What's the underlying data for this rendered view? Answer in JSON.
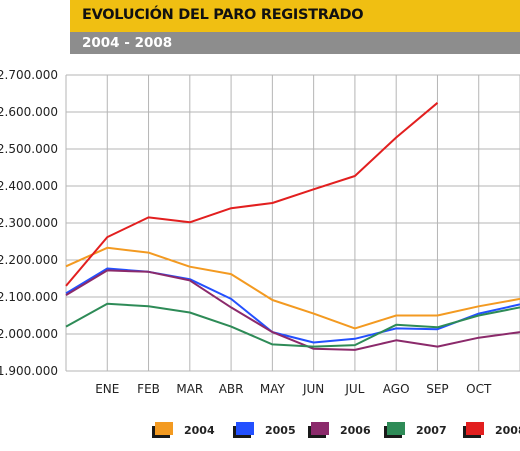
{
  "header": {
    "title": "EVOLUCIÓN DEL PARO REGISTRADO",
    "subtitle": "2004 - 2008"
  },
  "chart_data": {
    "type": "line",
    "title": "EVOLUCIÓN DEL PARO REGISTRADO",
    "subtitle": "2004 - 2008",
    "xlabel": "",
    "ylabel": "",
    "categories": [
      "",
      "ENE",
      "FEB",
      "MAR",
      "ABR",
      "MAY",
      "JUN",
      "JUL",
      "AGO",
      "SEP",
      "OCT",
      ""
    ],
    "ylim": [
      1900000,
      2700000
    ],
    "yticks": [
      1900000,
      2000000,
      2100000,
      2200000,
      2300000,
      2400000,
      2500000,
      2600000,
      2700000
    ],
    "ytick_labels": [
      "1.900.000",
      "2.000.000",
      "2.100.000",
      "2.200.000",
      "2.300.000",
      "2.400.000",
      "2.500.000",
      "2.600.000",
      "2.700.000"
    ],
    "grid": true,
    "legend": "bottom",
    "series": [
      {
        "name": "2004",
        "color": "#f39a21",
        "values": [
          2183000,
          2233000,
          2220000,
          2182000,
          2162000,
          2092000,
          2055000,
          2015000,
          2050000,
          2050000,
          2075000,
          2095000
        ]
      },
      {
        "name": "2005",
        "color": "#2350ff",
        "values": [
          2110000,
          2177000,
          2168000,
          2148000,
          2095000,
          2005000,
          1977000,
          1987000,
          2015000,
          2013000,
          2055000,
          2080000
        ]
      },
      {
        "name": "2006",
        "color": "#8b2a6b",
        "values": [
          2105000,
          2172000,
          2168000,
          2145000,
          2072000,
          2005000,
          1960000,
          1957000,
          1983000,
          1966000,
          1990000,
          2005000
        ]
      },
      {
        "name": "2007",
        "color": "#2e8b57",
        "values": [
          2020000,
          2082000,
          2075000,
          2058000,
          2020000,
          1972000,
          1966000,
          1970000,
          2025000,
          2018000,
          2050000,
          2072000
        ]
      },
      {
        "name": "2008",
        "color": "#e21f1f",
        "values": [
          2130000,
          2262000,
          2315000,
          2302000,
          2340000,
          2354000,
          2391000,
          2427000,
          2531000,
          2625000,
          null,
          null
        ]
      }
    ]
  }
}
